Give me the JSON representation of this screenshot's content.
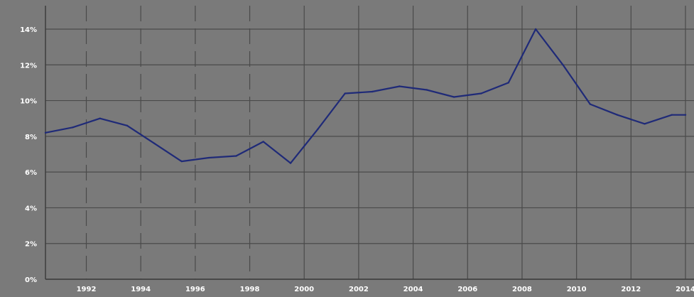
{
  "chart_data": {
    "type": "line",
    "title": "",
    "xlabel": "",
    "ylabel": "",
    "x_tick_labels": [
      "1992",
      "1994",
      "1996",
      "1998",
      "2000",
      "2002",
      "2004",
      "2006",
      "2008",
      "2010",
      "2012",
      "2014"
    ],
    "y_tick_labels": [
      "0%",
      "2%",
      "4%",
      "6%",
      "8%",
      "10%",
      "12%",
      "14%"
    ],
    "ylim": [
      0,
      14
    ],
    "xlim": [
      1990.5,
      2014
    ],
    "grid": true,
    "series": [
      {
        "color": "#1f2a78",
        "x": [
          1990.5,
          1991.5,
          1992.5,
          1993.5,
          1994.5,
          1995.5,
          1996.5,
          1997.5,
          1998.5,
          1999.5,
          2000.5,
          2001.5,
          2002.5,
          2003.5,
          2004.5,
          2005.5,
          2006.5,
          2007.5,
          2008.5,
          2009.5,
          2010.5,
          2011.5,
          2012.5,
          2013.5,
          2014
        ],
        "values": [
          8.2,
          8.5,
          9.0,
          8.6,
          7.6,
          6.6,
          6.8,
          6.9,
          7.7,
          6.5,
          8.4,
          10.4,
          10.5,
          10.8,
          10.6,
          10.2,
          10.4,
          11.0,
          14.0,
          12.0,
          9.8,
          9.2,
          8.7,
          9.2,
          9.2
        ]
      }
    ]
  }
}
